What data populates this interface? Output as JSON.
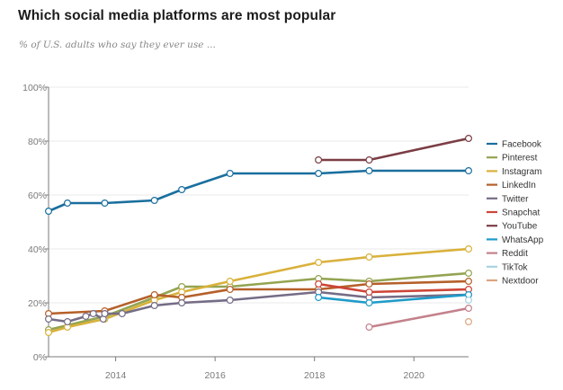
{
  "chart_data": {
    "type": "line",
    "title": "Which social media platforms are most popular",
    "subtitle": "% of U.S. adults who say they ever use ...",
    "xlabel": "",
    "ylabel": "",
    "xlim": [
      2012.65,
      2021.1
    ],
    "ylim": [
      0,
      100
    ],
    "x_ticks": [
      2014,
      2016,
      2018,
      2020
    ],
    "x_tick_labels": [
      "2014",
      "2016",
      "2018",
      "2020"
    ],
    "y_ticks": [
      0,
      20,
      40,
      60,
      80,
      100
    ],
    "y_tick_labels": [
      "0%",
      "20%",
      "40%",
      "60%",
      "80%",
      "100%"
    ],
    "grid": true,
    "legend_position": "right",
    "series": [
      {
        "name": "Facebook",
        "color": "#1a6f9e",
        "x": [
          2012.65,
          2013.03,
          2013.78,
          2014.78,
          2015.33,
          2016.3,
          2018.08,
          2019.1,
          2021.1
        ],
        "values": [
          54,
          57,
          57,
          58,
          62,
          68,
          68,
          69,
          69
        ]
      },
      {
        "name": "Pinterest",
        "color": "#93a451",
        "x": [
          2012.65,
          2013.78,
          2014.78,
          2015.33,
          2016.3,
          2018.08,
          2019.1,
          2021.1
        ],
        "values": [
          10,
          15,
          22,
          26,
          26,
          29,
          28,
          31
        ]
      },
      {
        "name": "Instagram",
        "color": "#d9b13b",
        "x": [
          2012.65,
          2013.03,
          2013.78,
          2014.78,
          2015.33,
          2016.3,
          2018.08,
          2019.1,
          2021.1
        ],
        "values": [
          9,
          11,
          14,
          21,
          24,
          28,
          35,
          37,
          40
        ]
      },
      {
        "name": "LinkedIn",
        "color": "#b5602a",
        "x": [
          2012.65,
          2013.78,
          2014.78,
          2015.33,
          2016.3,
          2018.08,
          2019.1,
          2021.1
        ],
        "values": [
          16,
          17,
          23,
          22,
          25,
          25,
          27,
          28
        ]
      },
      {
        "name": "Twitter",
        "color": "#756c86",
        "x": [
          2012.65,
          2013.03,
          2013.4,
          2013.55,
          2013.75,
          2013.78,
          2014.13,
          2014.78,
          2015.33,
          2016.3,
          2018.08,
          2019.1,
          2021.1
        ],
        "values": [
          14,
          13,
          15,
          16,
          14,
          16,
          16,
          19,
          20,
          21,
          24,
          22,
          23
        ]
      },
      {
        "name": "Snapchat",
        "color": "#cc4537",
        "x": [
          2018.08,
          2019.1,
          2021.1
        ],
        "values": [
          27,
          24,
          25
        ]
      },
      {
        "name": "YouTube",
        "color": "#7b3d45",
        "x": [
          2018.08,
          2019.1,
          2021.1
        ],
        "values": [
          73,
          73,
          81
        ]
      },
      {
        "name": "WhatsApp",
        "color": "#1e9bc9",
        "x": [
          2018.08,
          2019.1,
          2021.1
        ],
        "values": [
          22,
          20,
          23
        ]
      },
      {
        "name": "Reddit",
        "color": "#c4818b",
        "x": [
          2019.1,
          2021.1
        ],
        "values": [
          11,
          18
        ]
      },
      {
        "name": "TikTok",
        "color": "#a8d3e2",
        "x": [
          2021.1
        ],
        "values": [
          21
        ]
      },
      {
        "name": "Nextdoor",
        "color": "#dca57f",
        "x": [
          2021.1
        ],
        "values": [
          13
        ]
      }
    ]
  }
}
